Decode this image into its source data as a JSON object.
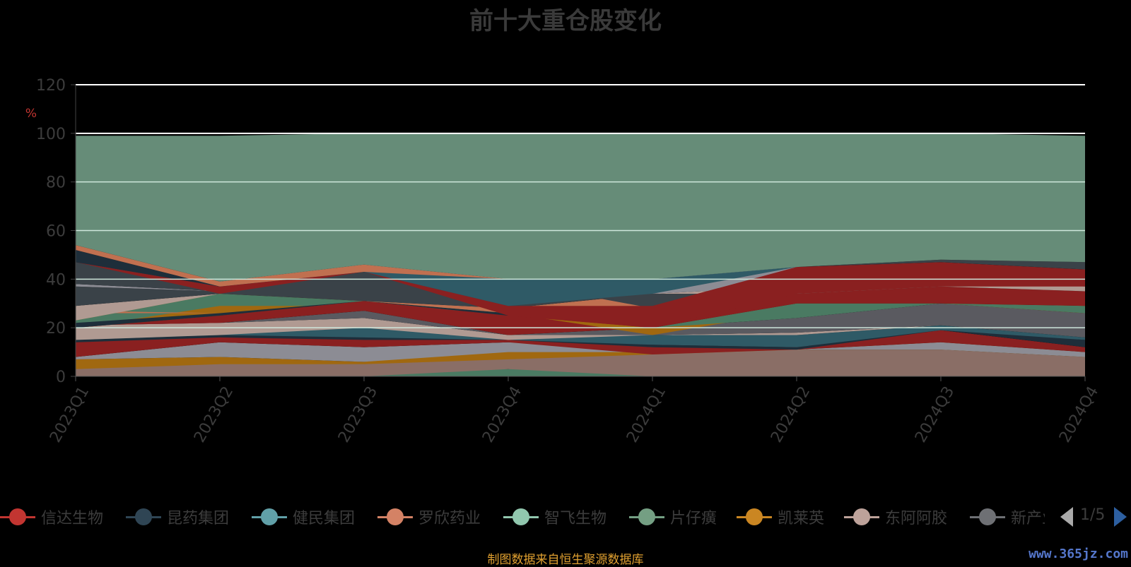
{
  "title": "前十大重仓股变化",
  "source_note": "制图数据来自恒生聚源数据库",
  "watermark": "www.365jz.com",
  "pager": "1/5",
  "chart_data": {
    "type": "area",
    "title": "前十大重仓股变化",
    "ylabel": "%",
    "xlabel": "",
    "ylim": [
      0,
      120
    ],
    "yticks": [
      0,
      20,
      40,
      60,
      80,
      100,
      120
    ],
    "categories": [
      "2023Q1",
      "2023Q2",
      "2023Q3",
      "2023Q4",
      "2024Q1",
      "2024Q2",
      "2024Q3",
      "2024Q4"
    ],
    "grid": true,
    "legend_position": "bottom",
    "legend": [
      {
        "name": "信达生物",
        "color": "#c23531"
      },
      {
        "name": "昆药集团",
        "color": "#2f4554"
      },
      {
        "name": "健民集团",
        "color": "#61a0a8"
      },
      {
        "name": "罗欣药业",
        "color": "#d48265"
      },
      {
        "name": "智飞生物",
        "color": "#91c7ae"
      },
      {
        "name": "片仔癀",
        "color": "#749f83"
      },
      {
        "name": "凯莱英",
        "color": "#ca8622"
      },
      {
        "name": "东阿阿胶",
        "color": "#bda29a"
      },
      {
        "name": "新产业",
        "color": "#6e7074"
      }
    ],
    "bands": [
      {
        "color": "#8a2020",
        "lower": [
          7,
          2,
          0,
          0,
          3,
          6,
          5,
          7
        ],
        "upper": [
          8,
          3,
          0,
          0,
          4,
          7,
          6,
          7
        ]
      },
      {
        "color": "#1e2e3a",
        "lower": [
          0,
          0,
          0,
          0,
          0,
          0,
          0,
          0
        ],
        "upper": [
          0,
          0,
          0,
          0,
          7,
          9,
          8,
          8
        ]
      },
      {
        "color": "#2f5a66",
        "lower": [
          0,
          0,
          0,
          0,
          0,
          0,
          0,
          0
        ],
        "upper": [
          0,
          3,
          0,
          0,
          9,
          11,
          7,
          8
        ]
      },
      {
        "color": "#4a7a62",
        "lower": [
          0,
          3,
          0,
          0,
          0,
          0,
          0,
          0
        ],
        "upper": [
          6,
          8,
          5,
          3,
          10,
          11,
          10,
          8
        ]
      },
      {
        "color": "#8a6e66",
        "lower": [
          0,
          0,
          0,
          3,
          0,
          0,
          0,
          0
        ],
        "upper": [
          5,
          7,
          6,
          10,
          10,
          11,
          11,
          8
        ]
      },
      {
        "color": "#a06810",
        "lower": [
          3,
          5,
          5,
          7,
          9,
          11,
          11,
          8
        ],
        "upper": [
          7,
          8,
          6,
          12,
          10,
          11,
          14,
          10
        ]
      },
      {
        "color": "#8c8c94",
        "lower": [
          7,
          8,
          6,
          10,
          10,
          11,
          11,
          8
        ],
        "upper": [
          8,
          14,
          12,
          14,
          12,
          11,
          14,
          10
        ]
      },
      {
        "color": "#8a2020",
        "lower": [
          8,
          14,
          12,
          14,
          9,
          11,
          14,
          10
        ],
        "upper": [
          14,
          22,
          16,
          17,
          12,
          12,
          19,
          12
        ]
      },
      {
        "color": "#1e2e3a",
        "lower": [
          14,
          16,
          15,
          15,
          12,
          11,
          19,
          12
        ],
        "upper": [
          21,
          22,
          20,
          17,
          13,
          12,
          20,
          15
        ]
      },
      {
        "color": "#2f5a66",
        "lower": [
          15,
          17,
          16,
          15,
          13,
          12,
          19,
          15
        ],
        "upper": [
          20,
          22,
          20,
          17,
          17,
          17,
          21,
          16
        ]
      },
      {
        "color": "#b09a92",
        "lower": [
          15,
          17,
          20,
          15,
          17,
          17,
          21,
          16
        ],
        "upper": [
          21,
          22,
          24,
          17,
          17,
          18,
          21,
          16
        ]
      },
      {
        "color": "#5a5a60",
        "lower": [
          21,
          22,
          24,
          17,
          17,
          18,
          21,
          16
        ],
        "upper": [
          24,
          22,
          27,
          17,
          20,
          24,
          30,
          26
        ]
      },
      {
        "color": "#8a2020",
        "lower": [
          21,
          22,
          27,
          17,
          20,
          24,
          30,
          26
        ],
        "upper": [
          22,
          25,
          31,
          26,
          20,
          24,
          30,
          26
        ]
      },
      {
        "color": "#a06810",
        "lower": [
          20,
          25,
          31,
          26,
          17,
          27,
          30,
          26
        ],
        "upper": [
          24,
          34,
          31,
          26,
          20,
          30,
          30,
          29
        ]
      },
      {
        "color": "#4a7a62",
        "lower": [
          20,
          29,
          29,
          26,
          20,
          24,
          30,
          26
        ],
        "upper": [
          23,
          34,
          31,
          28,
          20,
          30,
          30,
          29
        ]
      },
      {
        "color": "#8a2020",
        "lower": [
          20,
          25,
          27,
          25,
          20,
          30,
          30,
          29
        ],
        "upper": [
          21,
          25,
          31,
          25,
          28,
          34,
          37,
          35
        ]
      },
      {
        "color": "#1e2e3a",
        "lower": [
          20,
          25,
          31,
          25,
          28,
          34,
          37,
          35
        ],
        "upper": [
          22,
          26,
          31,
          26,
          28,
          34,
          37,
          35
        ]
      },
      {
        "color": "#c07050",
        "lower": [
          26,
          26,
          31,
          26,
          28,
          34,
          37,
          35
        ],
        "upper": [
          27,
          26,
          31,
          28,
          34,
          34,
          37,
          35
        ]
      },
      {
        "color": "#b09a92",
        "lower": [
          23,
          34,
          31,
          28,
          34,
          34,
          37,
          35
        ],
        "upper": [
          29,
          34,
          31,
          28,
          34,
          37,
          41,
          37
        ]
      },
      {
        "color": "#3a4248",
        "lower": [
          29,
          34,
          31,
          28,
          34,
          37,
          41,
          37
        ],
        "upper": [
          37,
          35,
          43,
          35,
          34,
          37,
          41,
          37
        ]
      },
      {
        "color": "#8c8c94",
        "lower": [
          37,
          35,
          43,
          35,
          34,
          37,
          41,
          37
        ],
        "upper": [
          38,
          35,
          43,
          39,
          40,
          45,
          41,
          44
        ]
      },
      {
        "color": "#3a4248",
        "lower": [
          38,
          35,
          43,
          39,
          28,
          34,
          37,
          35
        ],
        "upper": [
          47,
          35,
          43,
          39,
          34,
          34,
          37,
          35
        ]
      },
      {
        "color": "#8a2020",
        "lower": [
          47,
          34,
          43,
          25,
          20,
          34,
          37,
          37
        ],
        "upper": [
          47,
          37,
          43,
          29,
          29,
          45,
          47,
          44
        ]
      },
      {
        "color": "#2f5a66",
        "lower": [
          47,
          37,
          43,
          29,
          34,
          45,
          47,
          44
        ],
        "upper": [
          47,
          39,
          46,
          40,
          40,
          45,
          47,
          44
        ]
      },
      {
        "color": "#1e2e3a",
        "lower": [
          47,
          37,
          43,
          40,
          40,
          45,
          47,
          44
        ],
        "upper": [
          52,
          37,
          43,
          40,
          40,
          45,
          47,
          44
        ]
      },
      {
        "color": "#c07050",
        "lower": [
          52,
          37,
          43,
          40,
          40,
          45,
          47,
          44
        ],
        "upper": [
          54,
          39,
          46,
          40,
          40,
          45,
          47,
          44
        ]
      },
      {
        "color": "#3a4248",
        "lower": [
          54,
          39,
          46,
          40,
          40,
          45,
          47,
          44
        ],
        "upper": [
          54,
          39,
          46,
          40,
          40,
          45,
          48,
          47
        ]
      },
      {
        "color": "#668c78",
        "lower": [
          54,
          39,
          46,
          40,
          40,
          45,
          48,
          47
        ],
        "upper": [
          99,
          99,
          100,
          100,
          100,
          100,
          100,
          99
        ]
      }
    ]
  }
}
